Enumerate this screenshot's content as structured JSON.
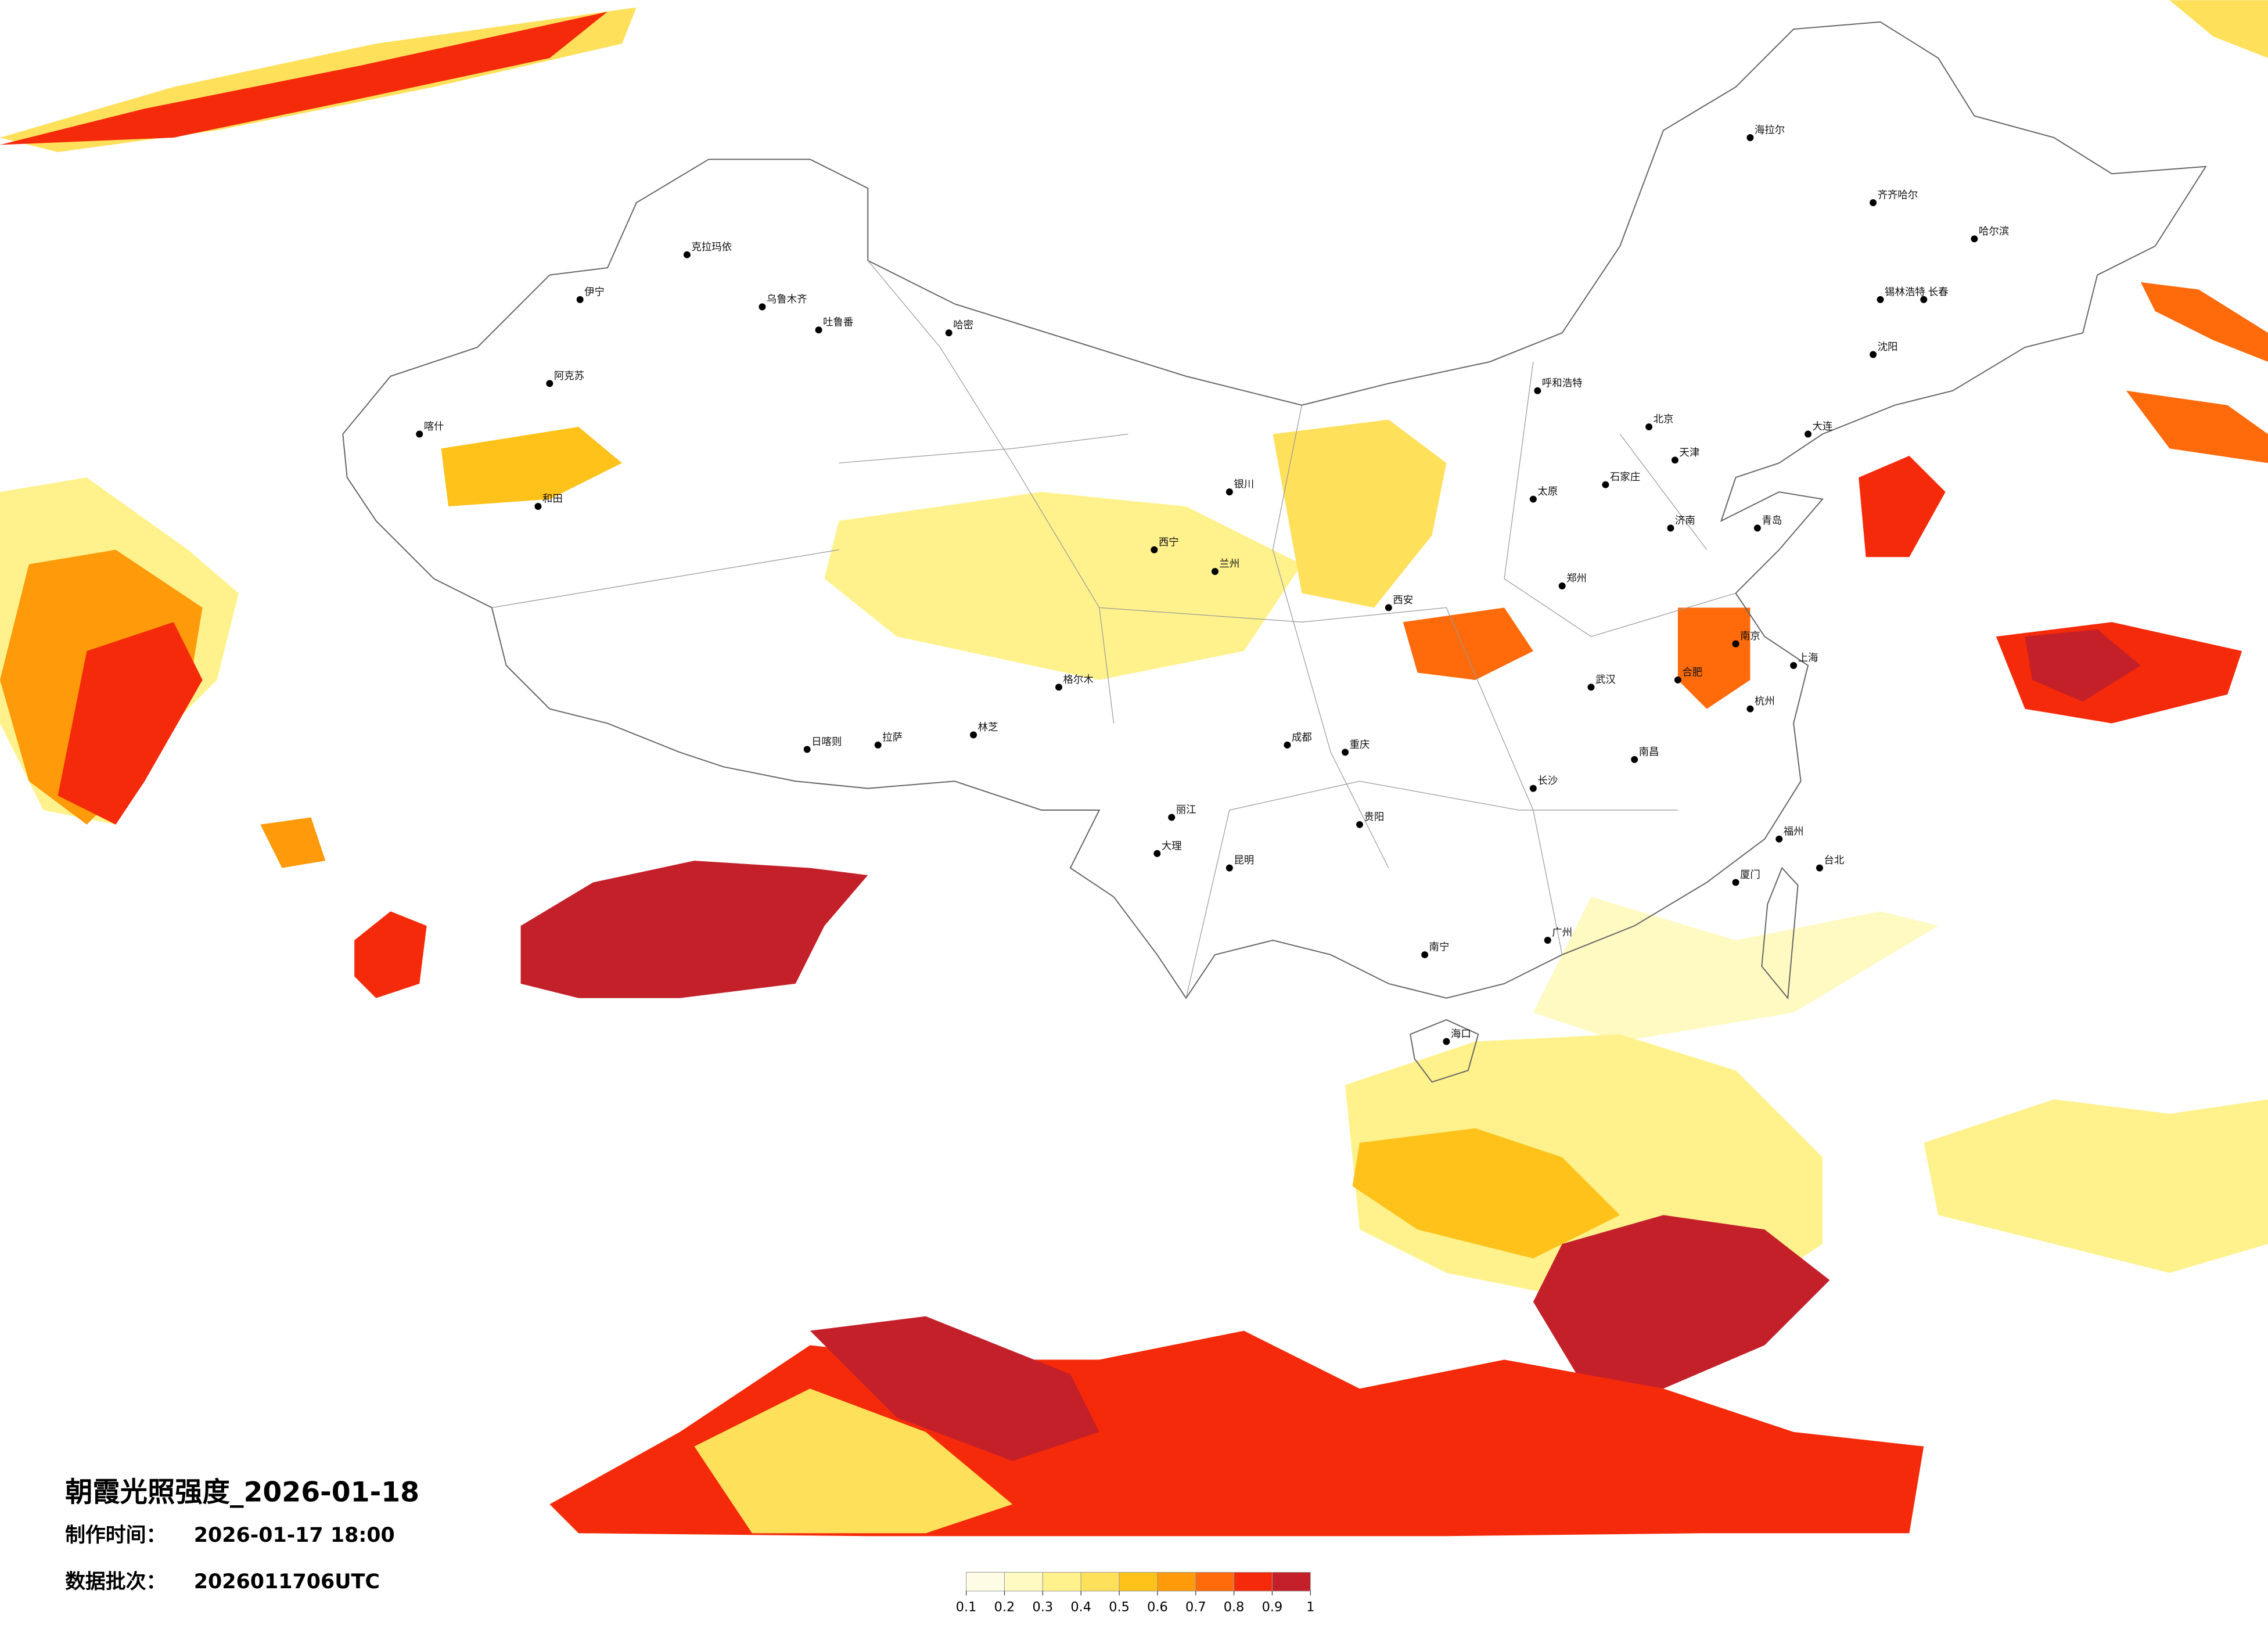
{
  "title": "朝霞光照强度_2026-01-18",
  "info": [
    {
      "label": "制作时间：",
      "value": "2026-01-17 18:00"
    },
    {
      "label": "数据批次：",
      "value": "2026011706UTC"
    }
  ],
  "legend": {
    "colors": [
      "#fffce6",
      "#fff9c2",
      "#fff28c",
      "#ffe05a",
      "#ffc21a",
      "#ff9a0a",
      "#ff6a0a",
      "#f52a0a",
      "#c4202a"
    ],
    "ticks": [
      0.1,
      0.2,
      0.3,
      0.4,
      0.5,
      0.6,
      0.7,
      0.8,
      0.9,
      1
    ]
  },
  "cities": [
    "克拉玛依",
    "乌鲁木齐",
    "吐鲁番",
    "哈密",
    "阿克苏",
    "喀什",
    "和田",
    "伊宁",
    "拉萨",
    "日喀则",
    "格尔木",
    "西宁",
    "兰州",
    "银川",
    "呼和浩特",
    "北京",
    "天津",
    "石家庄",
    "太原",
    "济南",
    "郑州",
    "西安",
    "成都",
    "重庆",
    "武汉",
    "南京",
    "上海",
    "杭州",
    "长沙",
    "南昌",
    "福州",
    "贵阳",
    "昆明",
    "南宁",
    "广州",
    "海口",
    "台北",
    "沈阳",
    "长春",
    "哈尔滨",
    "海拉尔",
    "齐齐哈尔",
    "大连",
    "青岛",
    "合肥",
    "厦门",
    "大理",
    "丽江",
    "林芝",
    "锡林浩特"
  ]
}
